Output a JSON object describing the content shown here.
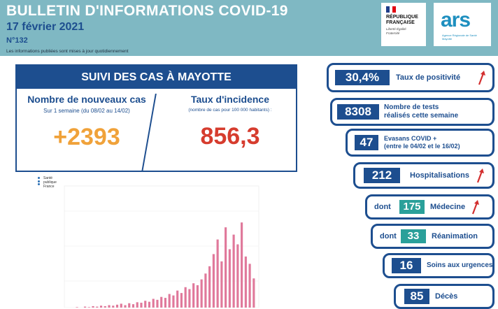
{
  "header": {
    "title": "BULLETIN D'INFORMATIONS COVID-19",
    "date": "17 février 2021",
    "number": "N°132",
    "note": "Les informations publiées sont mises à jour quotidiennement"
  },
  "logos": {
    "rf_title": "RÉPUBLIQUE FRANÇAISE",
    "rf_motto": "Liberté Égalité Fraternité",
    "ars": "ars",
    "ars_sub": "Agence Régionale de Santé Mayotte",
    "sante_publique": "Santé publique France"
  },
  "suivi": {
    "title": "SUIVI DES CAS À MAYOTTE",
    "new_cases_label": "Nombre de nouveaux cas",
    "new_cases_sub": "Sur 1 semaine (du 08/02 au 14/02)",
    "new_cases_value": "+2393",
    "incidence_label": "Taux d'incidence",
    "incidence_sub": "(nombre de cas pour 100 000 habitants) :",
    "incidence_value": "856,3"
  },
  "indicators": {
    "positivite": {
      "value": "30,4%",
      "label": "Taux de positivité",
      "trend": "up"
    },
    "tests": {
      "value": "8308",
      "label_line1": "Nombre de tests",
      "label_line2": "réalisés cette semaine"
    },
    "evasans": {
      "value": "47",
      "label_line1": "Evasans COVID +",
      "label_line2": "(entre le 04/02 et le 16/02)"
    },
    "hospitalisations": {
      "value": "212",
      "label": "Hospitalisations",
      "trend": "up"
    },
    "medecine": {
      "prefix": "dont",
      "value": "175",
      "label": "Médecine",
      "trend": "up"
    },
    "reanimation": {
      "prefix": "dont",
      "value": "33",
      "label": "Réanimation"
    },
    "urgences": {
      "value": "16",
      "label": "Soins aux urgences"
    },
    "deces": {
      "value": "85",
      "label": "Décès"
    }
  },
  "colors": {
    "navy": "#1d4e8f",
    "teal": "#2aa09a",
    "header_bg": "#7fb8c3",
    "orange": "#f0a23a",
    "red": "#d63c2e",
    "arrow_red": "#d32f2f",
    "bar_pink": "#e0799b"
  },
  "chart_data": {
    "type": "bar",
    "title": "",
    "xlabel": "",
    "ylabel": "",
    "ylim": [
      0,
      250
    ],
    "series": [
      {
        "values": [
          0,
          0,
          1,
          0,
          2,
          1,
          3,
          2,
          4,
          3,
          5,
          4,
          6,
          8,
          5,
          9,
          7,
          11,
          10,
          14,
          12,
          18,
          16,
          22,
          20,
          28,
          25,
          35,
          30,
          42,
          38,
          50,
          46,
          58,
          70,
          85,
          110,
          140,
          95,
          165,
          120,
          150,
          130,
          175,
          105,
          90,
          60
        ]
      }
    ]
  }
}
